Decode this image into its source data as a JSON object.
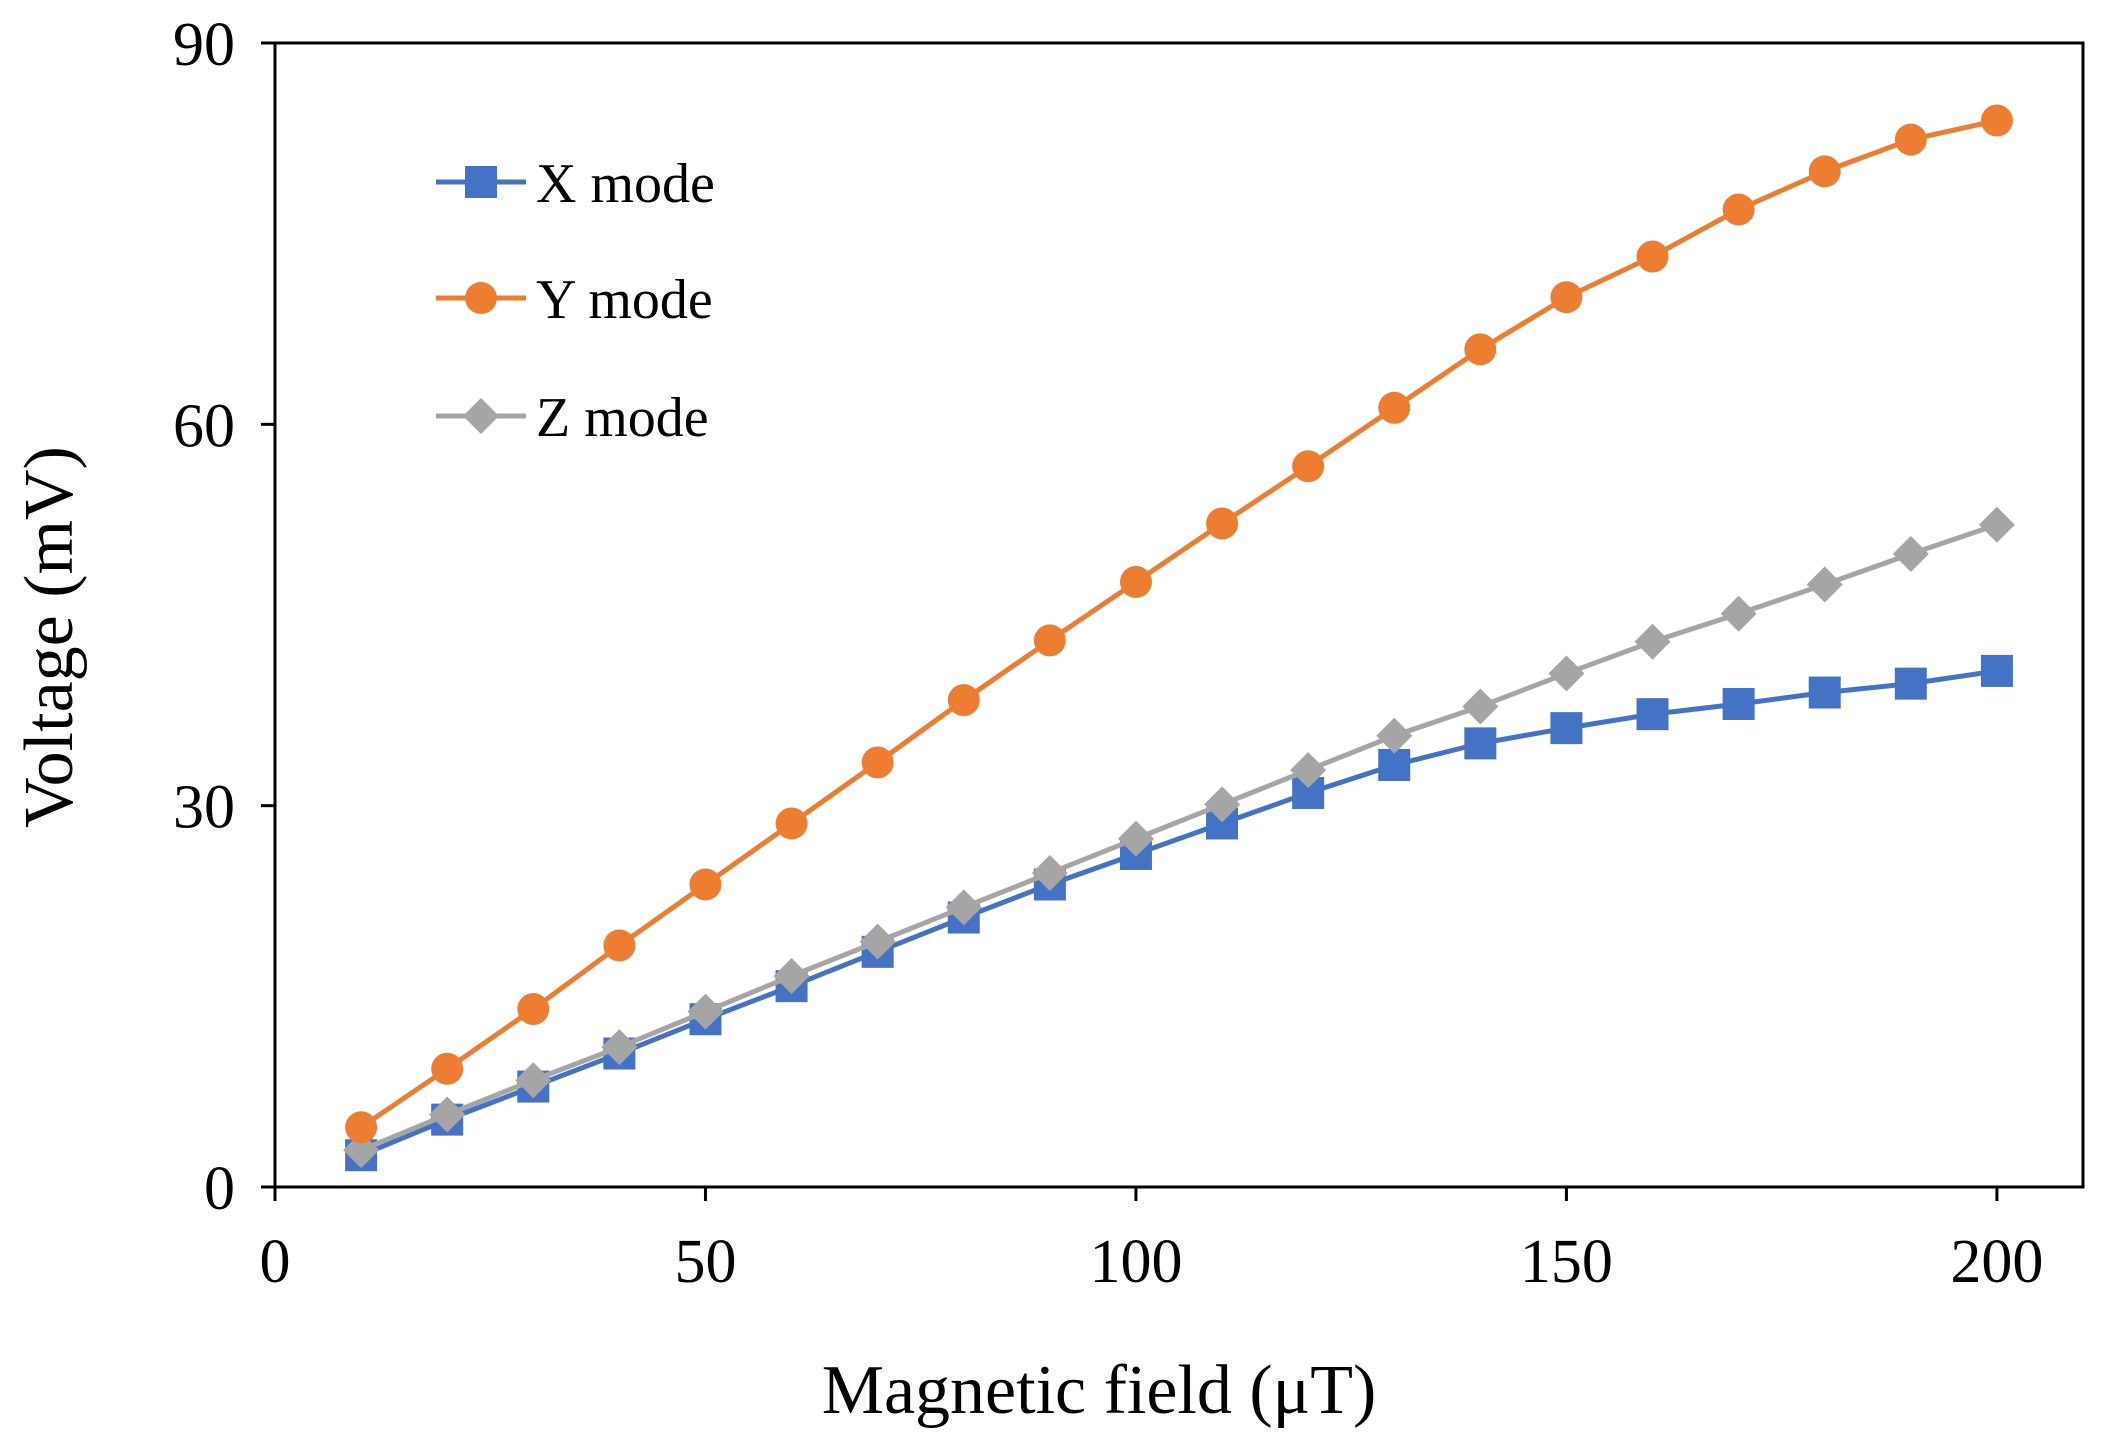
{
  "chart_data": {
    "type": "line",
    "title": "",
    "xlabel": "Magnetic field (μT)",
    "ylabel": "Voltage (mV)",
    "xlim": [
      0,
      210
    ],
    "ylim": [
      0,
      90
    ],
    "xticks": [
      0,
      50,
      100,
      150,
      200
    ],
    "yticks": [
      0,
      30,
      60,
      90
    ],
    "grid": false,
    "legend_position": "top-left",
    "x": [
      10,
      20,
      30,
      40,
      50,
      60,
      70,
      80,
      90,
      100,
      110,
      120,
      130,
      140,
      150,
      160,
      170,
      180,
      190,
      200
    ],
    "series": [
      {
        "name": "X mode",
        "color": "#4472C4",
        "marker": "square",
        "values": [
          2.5,
          5.3,
          7.9,
          10.5,
          13.2,
          15.8,
          18.5,
          21.2,
          23.8,
          26.2,
          28.6,
          31.0,
          33.2,
          34.9,
          36.1,
          37.2,
          38.0,
          38.9,
          39.6,
          40.6
        ]
      },
      {
        "name": "Y mode",
        "color": "#ED7D31",
        "marker": "circle",
        "values": [
          4.7,
          9.3,
          14.0,
          19.0,
          23.8,
          28.6,
          33.4,
          38.3,
          43.0,
          47.6,
          52.2,
          56.7,
          61.3,
          65.9,
          70.0,
          73.2,
          76.9,
          79.9,
          82.4,
          83.9
        ]
      },
      {
        "name": "Z mode",
        "color": "#A5A5A5",
        "marker": "diamond",
        "values": [
          2.9,
          5.7,
          8.4,
          11.0,
          13.8,
          16.6,
          19.3,
          22.0,
          24.7,
          27.4,
          30.1,
          32.8,
          35.5,
          37.8,
          40.4,
          42.9,
          45.1,
          47.4,
          49.8,
          52.1
        ]
      }
    ]
  }
}
